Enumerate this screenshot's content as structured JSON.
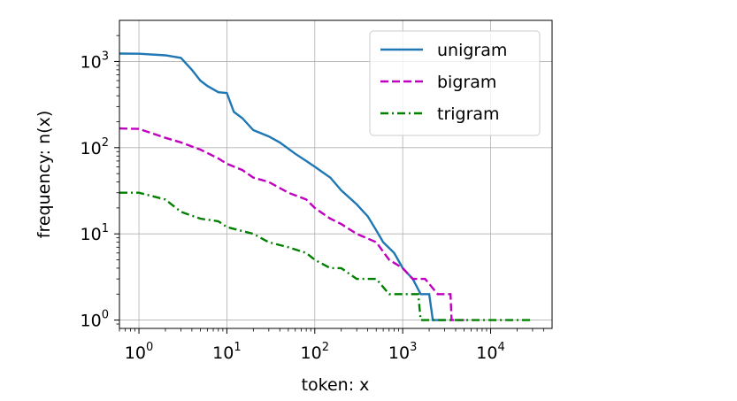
{
  "chart_data": {
    "type": "line",
    "xscale": "log",
    "yscale": "log",
    "xlabel": "token: x",
    "ylabel": "frequency: n(x)",
    "xlim": [
      0.6,
      50000
    ],
    "ylim": [
      0.8,
      3000
    ],
    "grid": true,
    "legend_position": "top-right",
    "x_ticks": [
      {
        "base": "10",
        "exp": "0",
        "value": 1
      },
      {
        "base": "10",
        "exp": "1",
        "value": 10
      },
      {
        "base": "10",
        "exp": "2",
        "value": 100
      },
      {
        "base": "10",
        "exp": "3",
        "value": 1000
      },
      {
        "base": "10",
        "exp": "4",
        "value": 10000
      }
    ],
    "y_ticks": [
      {
        "base": "10",
        "exp": "0",
        "value": 1
      },
      {
        "base": "10",
        "exp": "1",
        "value": 10
      },
      {
        "base": "10",
        "exp": "2",
        "value": 100
      },
      {
        "base": "10",
        "exp": "3",
        "value": 1000
      }
    ],
    "series": [
      {
        "name": "unigram",
        "color": "#1f77b4",
        "dash": "solid",
        "points": [
          [
            0.6,
            1235
          ],
          [
            1,
            1230
          ],
          [
            2,
            1180
          ],
          [
            3,
            1100
          ],
          [
            4,
            800
          ],
          [
            5,
            600
          ],
          [
            6,
            520
          ],
          [
            8,
            440
          ],
          [
            10,
            430
          ],
          [
            12,
            260
          ],
          [
            15,
            220
          ],
          [
            20,
            160
          ],
          [
            30,
            135
          ],
          [
            40,
            115
          ],
          [
            60,
            85
          ],
          [
            80,
            70
          ],
          [
            100,
            60
          ],
          [
            150,
            45
          ],
          [
            200,
            32
          ],
          [
            300,
            22
          ],
          [
            400,
            16
          ],
          [
            500,
            11
          ],
          [
            600,
            8
          ],
          [
            800,
            6
          ],
          [
            1000,
            4
          ],
          [
            1300,
            3
          ],
          [
            1600,
            2
          ],
          [
            2000,
            2
          ],
          [
            2200,
            1
          ],
          [
            3000,
            1
          ]
        ]
      },
      {
        "name": "bigram",
        "color": "#bf00bf",
        "dash": "dashed",
        "points": [
          [
            0.6,
            167
          ],
          [
            1,
            165
          ],
          [
            2,
            130
          ],
          [
            3,
            115
          ],
          [
            5,
            95
          ],
          [
            8,
            75
          ],
          [
            10,
            65
          ],
          [
            15,
            55
          ],
          [
            20,
            45
          ],
          [
            30,
            40
          ],
          [
            50,
            30
          ],
          [
            80,
            25
          ],
          [
            100,
            20
          ],
          [
            150,
            15
          ],
          [
            200,
            13
          ],
          [
            300,
            10
          ],
          [
            500,
            8
          ],
          [
            700,
            5
          ],
          [
            1000,
            4
          ],
          [
            1300,
            3
          ],
          [
            1800,
            3
          ],
          [
            2500,
            2
          ],
          [
            3500,
            2
          ],
          [
            3600,
            1
          ],
          [
            5000,
            1
          ]
        ]
      },
      {
        "name": "trigram",
        "color": "#008000",
        "dash": "dashdot",
        "points": [
          [
            0.6,
            30
          ],
          [
            1,
            30
          ],
          [
            2,
            25
          ],
          [
            3,
            18
          ],
          [
            5,
            15
          ],
          [
            8,
            14
          ],
          [
            10,
            12
          ],
          [
            20,
            10
          ],
          [
            30,
            8
          ],
          [
            50,
            7
          ],
          [
            80,
            6
          ],
          [
            100,
            5
          ],
          [
            150,
            4
          ],
          [
            200,
            4
          ],
          [
            300,
            3
          ],
          [
            500,
            3
          ],
          [
            700,
            2
          ],
          [
            1000,
            2
          ],
          [
            1500,
            2
          ],
          [
            1600,
            1
          ],
          [
            3000,
            1
          ],
          [
            30000,
            1
          ]
        ]
      }
    ]
  }
}
